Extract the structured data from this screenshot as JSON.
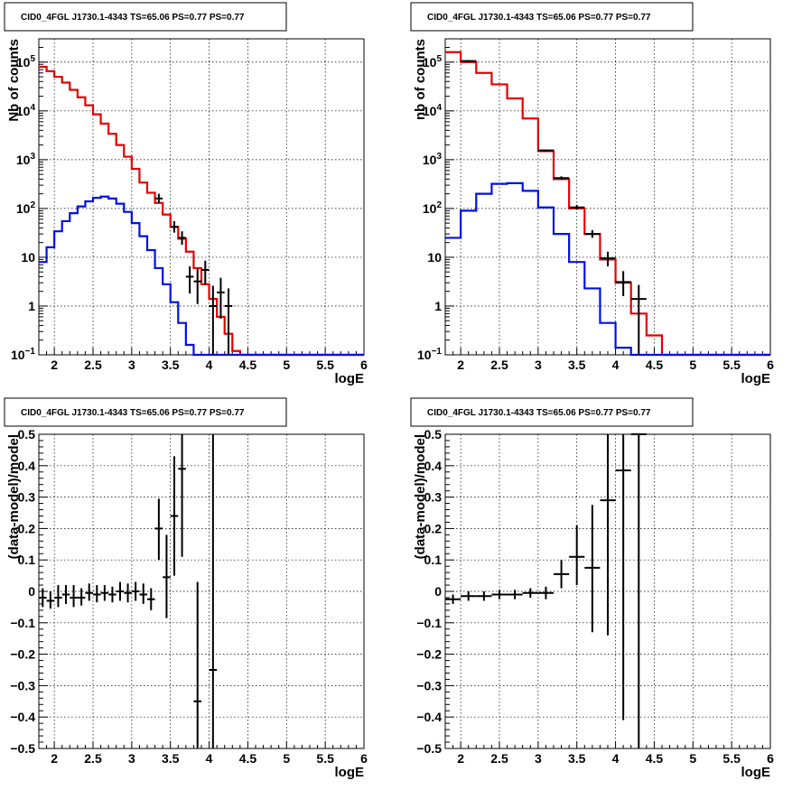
{
  "chart_data": [
    {
      "type": "histogram",
      "title": "CID0_4FGL J1730.1-4343 TS=65.06 PS=0.77 PS=0.77",
      "xlabel": "logE",
      "ylabel": "Nb of counts",
      "xlim": [
        1.8,
        6.0
      ],
      "ylim": [
        0.1,
        300000
      ],
      "yscale": "log",
      "grid": true,
      "xticks": [
        "2",
        "2.5",
        "3",
        "3.5",
        "4",
        "4.5",
        "5",
        "5.5",
        "6"
      ],
      "yticks": [
        {
          "v": 0.1,
          "m": "10",
          "e": "−1"
        },
        {
          "v": 1,
          "m": "1",
          "e": ""
        },
        {
          "v": 10,
          "m": "10",
          "e": ""
        },
        {
          "v": 100,
          "m": "10",
          "e": "2"
        },
        {
          "v": 1000,
          "m": "10",
          "e": "3"
        },
        {
          "v": 10000,
          "m": "10",
          "e": "4"
        },
        {
          "v": 100000,
          "m": "10",
          "e": "5"
        }
      ],
      "bin_edges": [
        1.8,
        1.9,
        2.0,
        2.1,
        2.2,
        2.3,
        2.4,
        2.5,
        2.6,
        2.7,
        2.8,
        2.9,
        3.0,
        3.1,
        3.2,
        3.3,
        3.4,
        3.5,
        3.6,
        3.7,
        3.8,
        3.9,
        4.0,
        4.1,
        4.2,
        4.3,
        4.4,
        4.5,
        4.6,
        4.7,
        4.8,
        4.9,
        5.0,
        5.1,
        5.2,
        5.3,
        5.4,
        5.5,
        5.6,
        5.7,
        5.8,
        5.9,
        6.0
      ],
      "series": [
        {
          "color": "#e60000",
          "values": [
            80000,
            65000,
            50000,
            38000,
            27000,
            19000,
            13000,
            8500,
            5500,
            3400,
            2000,
            1150,
            650,
            340,
            210,
            130,
            75,
            42,
            24,
            13,
            6,
            2.8,
            1.4,
            0.6,
            0.27,
            0.12,
            0.1,
            0.1,
            0.1,
            0.1,
            0.1,
            0.1,
            0.1,
            0.1,
            0.1,
            0.1,
            0.1,
            0.1,
            0.1,
            0.1,
            0.1,
            0.1
          ]
        },
        {
          "color": "#0010e6",
          "values": [
            8,
            16,
            34,
            55,
            80,
            110,
            140,
            165,
            175,
            160,
            125,
            85,
            50,
            27,
            14,
            6,
            2.8,
            1.2,
            0.45,
            0.16,
            0.1,
            0.1,
            0.1,
            0.1,
            0.1,
            0.1,
            0.1,
            0.1,
            0.1,
            0.1,
            0.1,
            0.1,
            0.1,
            0.1,
            0.1,
            0.1,
            0.1,
            0.1,
            0.1,
            0.1,
            0.1,
            0.1
          ]
        }
      ],
      "points": [
        {
          "x": 3.35,
          "y": 160,
          "lo": 130,
          "hi": 200,
          "xe": 0.05
        },
        {
          "x": 3.55,
          "y": 42,
          "lo": 32,
          "hi": 55,
          "xe": 0.05
        },
        {
          "x": 3.65,
          "y": 25,
          "lo": 18,
          "hi": 34,
          "xe": 0.05
        },
        {
          "x": 3.75,
          "y": 4,
          "lo": 1.8,
          "hi": 6.5,
          "xe": 0.05
        },
        {
          "x": 3.85,
          "y": 3.2,
          "lo": 1.1,
          "hi": 5.8,
          "xe": 0.05
        },
        {
          "x": 3.95,
          "y": 5.5,
          "lo": 2.8,
          "hi": 8.5,
          "xe": 0.05
        },
        {
          "x": 4.05,
          "y": 1,
          "lo": 0.1,
          "hi": 2.6,
          "xe": 0.05
        },
        {
          "x": 4.15,
          "y": 1.9,
          "lo": 0.55,
          "hi": 3.8,
          "xe": 0.05
        },
        {
          "x": 4.25,
          "y": 1,
          "lo": 0.1,
          "hi": 2.3,
          "xe": 0.05
        }
      ]
    },
    {
      "type": "histogram",
      "title": "CID0_4FGL J1730.1-4343 TS=65.06 PS=0.77 PS=0.77",
      "xlabel": "logE",
      "ylabel": "nb of counts",
      "xlim": [
        1.8,
        6.0
      ],
      "ylim": [
        0.1,
        300000
      ],
      "yscale": "log",
      "grid": true,
      "xticks": [
        "2",
        "2.5",
        "3",
        "3.5",
        "4",
        "4.5",
        "5",
        "5.5",
        "6"
      ],
      "yticks": [
        {
          "v": 0.1,
          "m": "10",
          "e": "−1"
        },
        {
          "v": 1,
          "m": "1",
          "e": ""
        },
        {
          "v": 10,
          "m": "10",
          "e": ""
        },
        {
          "v": 100,
          "m": "10",
          "e": "2"
        },
        {
          "v": 1000,
          "m": "10",
          "e": "3"
        },
        {
          "v": 10000,
          "m": "10",
          "e": "4"
        },
        {
          "v": 100000,
          "m": "10",
          "e": "5"
        }
      ],
      "bin_edges": [
        1.8,
        2.0,
        2.2,
        2.4,
        2.6,
        2.8,
        3.0,
        3.2,
        3.4,
        3.6,
        3.8,
        4.0,
        4.2,
        4.4,
        4.6,
        4.8,
        5.0,
        5.2,
        5.4,
        5.6,
        5.8,
        6.0
      ],
      "series": [
        {
          "color": "#e60000",
          "values": [
            160000,
            100000,
            60000,
            35000,
            18000,
            7000,
            1500,
            400,
            100,
            30,
            9,
            3,
            0.7,
            0.25,
            0.1,
            0.1,
            0.1,
            0.1,
            0.1,
            0.1,
            0.1
          ]
        },
        {
          "color": "#0010e6",
          "values": [
            25,
            90,
            200,
            320,
            330,
            230,
            105,
            30,
            8,
            2.3,
            0.45,
            0.14,
            0.1,
            0.1,
            0.1,
            0.1,
            0.1,
            0.1,
            0.1,
            0.1,
            0.1
          ]
        }
      ],
      "points": [
        {
          "x": 2.1,
          "y": 105000,
          "lo": 100000,
          "hi": 110000,
          "xe": 0.1
        },
        {
          "x": 3.1,
          "y": 1550,
          "lo": 1480,
          "hi": 1620,
          "xe": 0.1
        },
        {
          "x": 3.3,
          "y": 420,
          "lo": 390,
          "hi": 455,
          "xe": 0.1
        },
        {
          "x": 3.5,
          "y": 105,
          "lo": 95,
          "hi": 118,
          "xe": 0.1
        },
        {
          "x": 3.7,
          "y": 30,
          "lo": 25,
          "hi": 36,
          "xe": 0.1
        },
        {
          "x": 3.9,
          "y": 9.5,
          "lo": 6.5,
          "hi": 13,
          "xe": 0.1
        },
        {
          "x": 4.1,
          "y": 3.1,
          "lo": 1.6,
          "hi": 5.2,
          "xe": 0.1
        },
        {
          "x": 4.3,
          "y": 1.4,
          "lo": 0.1,
          "hi": 2.7,
          "xe": 0.1
        }
      ]
    },
    {
      "type": "scatter",
      "title": "CID0_4FGL J1730.1-4343 TS=65.06 PS=0.77 PS=0.77",
      "xlabel": "logE",
      "ylabel": "(data-model)/model",
      "xlim": [
        1.8,
        6.0
      ],
      "ylim": [
        -0.5,
        0.5
      ],
      "grid": true,
      "xticks": [
        "2",
        "2.5",
        "3",
        "3.5",
        "4",
        "4.5",
        "5",
        "5.5",
        "6"
      ],
      "yticks": [
        "−0.5",
        "−0.4",
        "−0.3",
        "−0.2",
        "−0.1",
        "0",
        "0.1",
        "0.2",
        "0.3",
        "0.4",
        "0.5"
      ],
      "points": [
        {
          "x": 1.85,
          "y": -0.02,
          "lo": -0.05,
          "hi": 0.01,
          "xe": 0.05
        },
        {
          "x": 1.95,
          "y": -0.03,
          "lo": -0.055,
          "hi": 0.0,
          "xe": 0.05
        },
        {
          "x": 2.05,
          "y": -0.02,
          "lo": -0.05,
          "hi": 0.02,
          "xe": 0.05
        },
        {
          "x": 2.15,
          "y": -0.01,
          "lo": -0.04,
          "hi": 0.02,
          "xe": 0.05
        },
        {
          "x": 2.25,
          "y": -0.02,
          "lo": -0.05,
          "hi": 0.02,
          "xe": 0.05
        },
        {
          "x": 2.35,
          "y": -0.02,
          "lo": -0.045,
          "hi": 0.01,
          "xe": 0.05
        },
        {
          "x": 2.45,
          "y": -0.005,
          "lo": -0.03,
          "hi": 0.025,
          "xe": 0.05
        },
        {
          "x": 2.55,
          "y": -0.01,
          "lo": -0.035,
          "hi": 0.02,
          "xe": 0.05
        },
        {
          "x": 2.65,
          "y": -0.005,
          "lo": -0.03,
          "hi": 0.02,
          "xe": 0.05
        },
        {
          "x": 2.75,
          "y": -0.01,
          "lo": -0.035,
          "hi": 0.015,
          "xe": 0.05
        },
        {
          "x": 2.85,
          "y": 0.0,
          "lo": -0.03,
          "hi": 0.03,
          "xe": 0.05
        },
        {
          "x": 2.95,
          "y": -0.005,
          "lo": -0.035,
          "hi": 0.025,
          "xe": 0.05
        },
        {
          "x": 3.05,
          "y": 0.0,
          "lo": -0.03,
          "hi": 0.03,
          "xe": 0.05
        },
        {
          "x": 3.15,
          "y": -0.01,
          "lo": -0.04,
          "hi": 0.025,
          "xe": 0.05
        },
        {
          "x": 3.25,
          "y": -0.025,
          "lo": -0.06,
          "hi": 0.01,
          "xe": 0.05
        },
        {
          "x": 3.35,
          "y": 0.2,
          "lo": 0.1,
          "hi": 0.295,
          "xe": 0.05
        },
        {
          "x": 3.45,
          "y": 0.045,
          "lo": -0.085,
          "hi": 0.18,
          "xe": 0.05
        },
        {
          "x": 3.55,
          "y": 0.24,
          "lo": 0.05,
          "hi": 0.43,
          "xe": 0.05
        },
        {
          "x": 3.65,
          "y": 0.39,
          "lo": 0.11,
          "hi": 0.5,
          "xe": 0.05
        },
        {
          "x": 3.85,
          "y": -0.35,
          "lo": -0.5,
          "hi": 0.03,
          "xe": 0.05
        },
        {
          "x": 4.05,
          "y": -0.25,
          "lo": -0.5,
          "hi": 0.5,
          "xe": 0.05
        }
      ]
    },
    {
      "type": "scatter",
      "title": "CID0_4FGL J1730.1-4343 TS=65.06 PS=0.77 PS=0.77",
      "xlabel": "logE",
      "ylabel": "(data-model)/model",
      "xlim": [
        1.8,
        6.0
      ],
      "ylim": [
        -0.5,
        0.5
      ],
      "grid": true,
      "xticks": [
        "2",
        "2.5",
        "3",
        "3.5",
        "4",
        "4.5",
        "5",
        "5.5",
        "6"
      ],
      "yticks": [
        "−0.5",
        "−0.4",
        "−0.3",
        "−0.2",
        "−0.1",
        "0",
        "0.1",
        "0.2",
        "0.3",
        "0.4",
        "0.5"
      ],
      "points": [
        {
          "x": 1.9,
          "y": -0.025,
          "lo": -0.04,
          "hi": -0.01,
          "xe": 0.1
        },
        {
          "x": 2.1,
          "y": -0.015,
          "lo": -0.03,
          "hi": 0.0,
          "xe": 0.1
        },
        {
          "x": 2.3,
          "y": -0.015,
          "lo": -0.03,
          "hi": 0.0,
          "xe": 0.1
        },
        {
          "x": 2.5,
          "y": -0.01,
          "lo": -0.025,
          "hi": 0.005,
          "xe": 0.1
        },
        {
          "x": 2.7,
          "y": -0.01,
          "lo": -0.025,
          "hi": 0.005,
          "xe": 0.1
        },
        {
          "x": 2.9,
          "y": -0.005,
          "lo": -0.02,
          "hi": 0.01,
          "xe": 0.1
        },
        {
          "x": 3.1,
          "y": -0.005,
          "lo": -0.025,
          "hi": 0.015,
          "xe": 0.1
        },
        {
          "x": 3.3,
          "y": 0.055,
          "lo": 0.01,
          "hi": 0.1,
          "xe": 0.1
        },
        {
          "x": 3.5,
          "y": 0.11,
          "lo": 0.02,
          "hi": 0.21,
          "xe": 0.1
        },
        {
          "x": 3.7,
          "y": 0.075,
          "lo": -0.13,
          "hi": 0.275,
          "xe": 0.1
        },
        {
          "x": 3.9,
          "y": 0.29,
          "lo": -0.14,
          "hi": 0.5,
          "xe": 0.1
        },
        {
          "x": 4.1,
          "y": 0.385,
          "lo": -0.41,
          "hi": 0.5,
          "xe": 0.1
        },
        {
          "x": 4.3,
          "y": 0.5,
          "lo": -0.5,
          "hi": 0.5,
          "xe": 0.1
        }
      ]
    }
  ]
}
